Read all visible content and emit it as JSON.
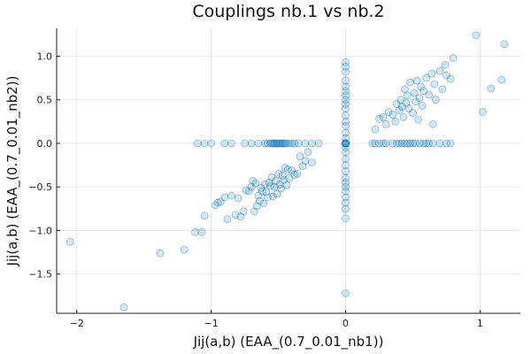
{
  "chart_data": {
    "type": "scatter",
    "title": "Couplings nb.1 vs nb.2",
    "xlabel": "Jij(a,b) (EAA_(0.7_0.01_nb1))",
    "ylabel": "Jij(a,b) (EAA_(0.7_0.01_nb2))",
    "xlim": [
      -2.15,
      1.3
    ],
    "ylim": [
      -1.95,
      1.32
    ],
    "xticks": [
      -2,
      -1,
      0,
      1
    ],
    "xtick_labels": [
      "−2",
      "−1",
      "0",
      "1"
    ],
    "yticks": [
      -1.5,
      -1.0,
      -0.5,
      0.0,
      0.5,
      1.0
    ],
    "ytick_labels": [
      "−1.5",
      "−1.0",
      "−0.5",
      "0.0",
      "0.5",
      "1.0"
    ],
    "grid": true,
    "legend": "none",
    "marker_color": "#009AFA",
    "marker_alpha": 0.2,
    "series": [
      {
        "x": [
          -2.05,
          -1.65,
          -1.38,
          -1.2,
          -1.12,
          -1.07,
          -1.05,
          -0.97,
          -0.95,
          -0.93,
          -0.9,
          -0.88,
          -0.85,
          -0.82,
          -0.8,
          -0.78,
          -0.76,
          -0.74,
          -0.72,
          -0.7,
          -0.69,
          -0.68,
          -0.67,
          -0.66,
          -0.65,
          -0.64,
          -0.63,
          -0.62,
          -0.61,
          -0.6,
          -0.59,
          -0.58,
          -0.57,
          -0.56,
          -0.55,
          -0.54,
          -0.53,
          -0.52,
          -0.51,
          -0.5,
          -0.49,
          -0.48,
          -0.47,
          -0.46,
          -0.45,
          -0.44,
          -0.43,
          -0.42,
          -0.4,
          -0.38,
          -0.36,
          -0.34,
          -0.32,
          -0.3,
          -0.28,
          -0.25,
          0.22,
          0.25,
          0.28,
          0.3,
          0.32,
          0.35,
          0.37,
          0.38,
          0.4,
          0.41,
          0.42,
          0.43,
          0.44,
          0.45,
          0.46,
          0.47,
          0.48,
          0.5,
          0.51,
          0.52,
          0.53,
          0.54,
          0.55,
          0.56,
          0.57,
          0.58,
          0.6,
          0.62,
          0.64,
          0.65,
          0.66,
          0.67,
          0.7,
          0.72,
          0.74,
          0.75,
          0.78,
          0.8,
          0.97,
          1.02,
          1.08,
          1.18,
          1.16,
          -1.1,
          -1.05,
          -1.0,
          -0.9,
          -0.85,
          -0.75,
          -0.7,
          -0.65,
          -0.6,
          -0.58,
          -0.56,
          -0.55,
          -0.54,
          -0.53,
          -0.52,
          -0.51,
          -0.5,
          -0.49,
          -0.48,
          -0.47,
          -0.46,
          -0.45,
          -0.44,
          -0.42,
          -0.4,
          -0.38,
          -0.35,
          -0.3,
          -0.25,
          -0.2,
          0.2,
          0.22,
          0.25,
          0.28,
          0.3,
          0.35,
          0.38,
          0.4,
          0.42,
          0.44,
          0.46,
          0.48,
          0.5,
          0.52,
          0.55,
          0.58,
          0.6,
          0.62,
          0.65,
          0.7,
          0.75,
          0.78,
          0,
          0,
          0,
          0,
          0,
          0,
          0,
          0,
          0,
          0,
          0,
          0,
          0,
          0,
          0,
          0,
          0,
          0,
          0,
          0,
          0,
          0,
          0,
          0,
          0,
          0,
          0,
          0,
          0,
          0,
          0,
          0,
          0,
          0,
          0
        ],
        "y": [
          -1.13,
          -1.88,
          -1.26,
          -1.22,
          -1.02,
          -1.02,
          -0.83,
          -0.71,
          -0.68,
          -0.67,
          -0.62,
          -0.87,
          -0.6,
          -0.82,
          -0.63,
          -0.84,
          -0.78,
          -0.54,
          -0.55,
          -0.5,
          -0.43,
          -0.78,
          -0.46,
          -0.72,
          -0.6,
          -0.66,
          -0.51,
          -0.55,
          -0.69,
          -0.47,
          -0.56,
          -0.62,
          -0.45,
          -0.49,
          -0.39,
          -0.61,
          -0.5,
          -0.43,
          -0.58,
          -0.35,
          -0.47,
          -0.52,
          -0.37,
          -0.42,
          -0.28,
          -0.48,
          -0.3,
          -0.4,
          -0.31,
          -0.36,
          -0.35,
          -0.15,
          -0.26,
          -0.2,
          -0.1,
          -0.22,
          0.16,
          0.28,
          0.3,
          0.22,
          0.36,
          0.33,
          0.25,
          0.45,
          0.38,
          0.5,
          0.42,
          0.3,
          0.62,
          0.46,
          0.55,
          0.4,
          0.7,
          0.35,
          0.58,
          0.48,
          0.72,
          0.27,
          0.52,
          0.65,
          0.43,
          0.6,
          0.75,
          0.56,
          0.8,
          0.22,
          0.68,
          0.5,
          0.83,
          0.62,
          0.9,
          0.78,
          0.74,
          0.98,
          1.24,
          0.36,
          0.63,
          1.14,
          0.73,
          0,
          0,
          0,
          0,
          0,
          0,
          0,
          0,
          0,
          0,
          0,
          0,
          0,
          0,
          0,
          0,
          0,
          0,
          0,
          0,
          0,
          0,
          0,
          0,
          0,
          0,
          0,
          0,
          0,
          0,
          0,
          0,
          0,
          0,
          0,
          0,
          0,
          0,
          0,
          0,
          0,
          0,
          0,
          0,
          0,
          0,
          0,
          0,
          0,
          0,
          0,
          0,
          0.93,
          0.88,
          0.82,
          0.72,
          0.65,
          0.6,
          0.55,
          0.5,
          0.45,
          0.4,
          0.32,
          0.25,
          0.2,
          0.12,
          0.06,
          -0.05,
          -0.1,
          -0.18,
          -0.25,
          -0.32,
          -0.4,
          -0.45,
          -0.5,
          -0.55,
          -0.62,
          -0.68,
          -0.75,
          -0.86,
          -1.72,
          0.0,
          0.0,
          0.0,
          0.0,
          0.0,
          0.0
        ]
      }
    ]
  }
}
